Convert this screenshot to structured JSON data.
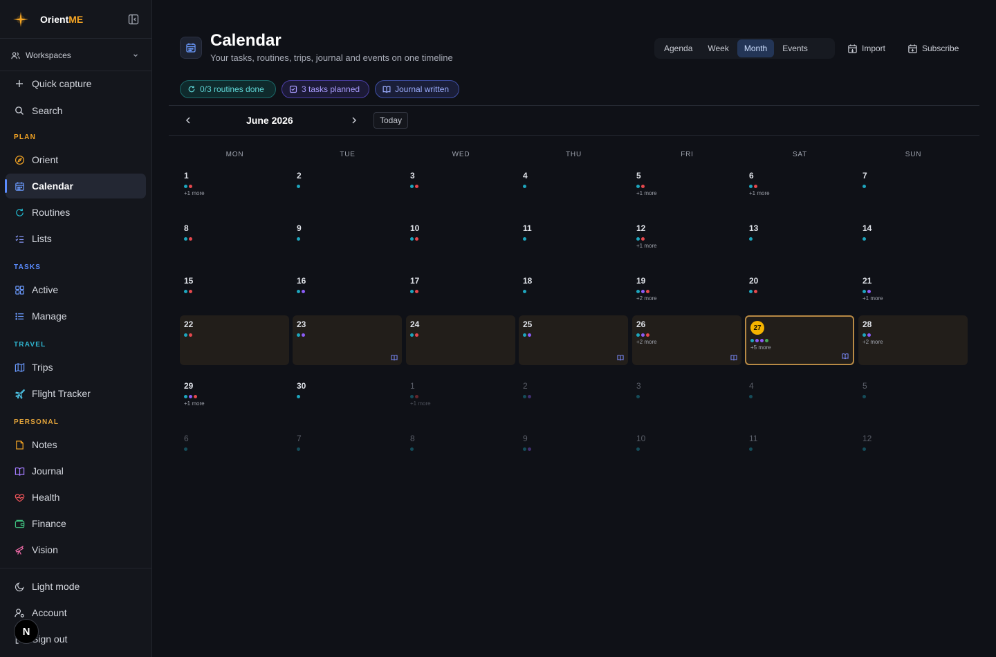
{
  "app": {
    "brand_prefix": "Orient",
    "brand_accent": "ME"
  },
  "sidebar": {
    "workspaces_label": "Workspaces",
    "quick_capture": "Quick capture",
    "search": "Search",
    "sections": {
      "plan": "PLAN",
      "tasks": "TASKS",
      "travel": "TRAVEL",
      "personal": "PERSONAL"
    },
    "items": {
      "orient": "Orient",
      "calendar": "Calendar",
      "routines": "Routines",
      "lists": "Lists",
      "active": "Active",
      "manage": "Manage",
      "trips": "Trips",
      "flight_tracker": "Flight Tracker",
      "notes": "Notes",
      "journal": "Journal",
      "health": "Health",
      "finance": "Finance",
      "vision": "Vision"
    },
    "footer": {
      "light_mode": "Light mode",
      "account": "Account",
      "sign_out": "Sign out",
      "avatar_letter": "N"
    }
  },
  "header": {
    "title": "Calendar",
    "subtitle": "Your tasks, routines, trips, journal and events on one timeline",
    "views": [
      "Agenda",
      "Week",
      "Month",
      "Events"
    ],
    "active_view": "Month",
    "import": "Import",
    "subscribe": "Subscribe"
  },
  "chips": {
    "routines": "0/3 routines done",
    "tasks": "3 tasks planned",
    "journal": "Journal written"
  },
  "calendar": {
    "month_label": "June 2026",
    "today_label": "Today",
    "weekdays": [
      "MON",
      "TUE",
      "WED",
      "THU",
      "FRI",
      "SAT",
      "SUN"
    ],
    "colors": {
      "teal": "#1ea5bd",
      "red": "#e5484d",
      "purple": "#8b5cf6",
      "green": "#46a758",
      "today": "#f5b400"
    },
    "weeks": [
      [
        {
          "day": "1",
          "dots": [
            "teal",
            "red"
          ],
          "more": "+1 more"
        },
        {
          "day": "2",
          "dots": [
            "teal"
          ]
        },
        {
          "day": "3",
          "dots": [
            "teal",
            "red"
          ]
        },
        {
          "day": "4",
          "dots": [
            "teal"
          ]
        },
        {
          "day": "5",
          "dots": [
            "teal",
            "red"
          ],
          "more": "+1 more"
        },
        {
          "day": "6",
          "dots": [
            "teal",
            "red"
          ],
          "more": "+1 more"
        },
        {
          "day": "7",
          "dots": [
            "teal"
          ]
        }
      ],
      [
        {
          "day": "8",
          "dots": [
            "teal",
            "red"
          ]
        },
        {
          "day": "9",
          "dots": [
            "teal"
          ]
        },
        {
          "day": "10",
          "dots": [
            "teal",
            "red"
          ]
        },
        {
          "day": "11",
          "dots": [
            "teal"
          ]
        },
        {
          "day": "12",
          "dots": [
            "teal",
            "red"
          ],
          "more": "+1 more"
        },
        {
          "day": "13",
          "dots": [
            "teal"
          ]
        },
        {
          "day": "14",
          "dots": [
            "teal"
          ]
        }
      ],
      [
        {
          "day": "15",
          "dots": [
            "teal",
            "red"
          ]
        },
        {
          "day": "16",
          "dots": [
            "teal",
            "purple"
          ]
        },
        {
          "day": "17",
          "dots": [
            "teal",
            "red"
          ],
          "journal": true
        },
        {
          "day": "18",
          "dots": [
            "teal"
          ]
        },
        {
          "day": "19",
          "dots": [
            "teal",
            "purple",
            "red"
          ],
          "more": "+2 more",
          "journal": true
        },
        {
          "day": "20",
          "dots": [
            "teal",
            "red"
          ]
        },
        {
          "day": "21",
          "dots": [
            "teal",
            "purple"
          ],
          "more": "+1 more",
          "journal": true
        }
      ],
      [
        {
          "day": "22",
          "dots": [
            "teal",
            "red"
          ]
        },
        {
          "day": "23",
          "dots": [
            "teal",
            "purple"
          ],
          "journal": true
        },
        {
          "day": "24",
          "dots": [
            "teal",
            "red"
          ]
        },
        {
          "day": "25",
          "dots": [
            "teal",
            "purple"
          ],
          "journal": true
        },
        {
          "day": "26",
          "dots": [
            "teal",
            "purple",
            "red"
          ],
          "more": "+2 more",
          "journal": true
        },
        {
          "day": "27",
          "dots": [
            "teal",
            "purple",
            "purple",
            "green"
          ],
          "more": "+5 more",
          "journal": true,
          "today": true
        },
        {
          "day": "28",
          "dots": [
            "teal",
            "purple"
          ],
          "more": "+2 more"
        }
      ],
      [
        {
          "day": "29",
          "dots": [
            "teal",
            "purple",
            "red"
          ],
          "more": "+1 more"
        },
        {
          "day": "30",
          "dots": [
            "teal"
          ]
        },
        {
          "day": "1",
          "dots": [
            "teal",
            "red"
          ],
          "more": "+1 more",
          "faded": true
        },
        {
          "day": "2",
          "dots": [
            "teal",
            "purple"
          ],
          "faded": true
        },
        {
          "day": "3",
          "dots": [
            "teal"
          ],
          "faded": true
        },
        {
          "day": "4",
          "dots": [
            "teal"
          ],
          "faded": true
        },
        {
          "day": "5",
          "dots": [
            "teal"
          ],
          "faded": true
        }
      ],
      [
        {
          "day": "6",
          "dots": [
            "teal"
          ],
          "faded": true
        },
        {
          "day": "7",
          "dots": [
            "teal"
          ],
          "faded": true
        },
        {
          "day": "8",
          "dots": [
            "teal"
          ],
          "faded": true
        },
        {
          "day": "9",
          "dots": [
            "teal",
            "purple"
          ],
          "faded": true
        },
        {
          "day": "10",
          "dots": [
            "teal"
          ],
          "faded": true
        },
        {
          "day": "11",
          "dots": [
            "teal"
          ],
          "faded": true
        },
        {
          "day": "12",
          "dots": [
            "teal"
          ],
          "faded": true
        }
      ]
    ]
  }
}
